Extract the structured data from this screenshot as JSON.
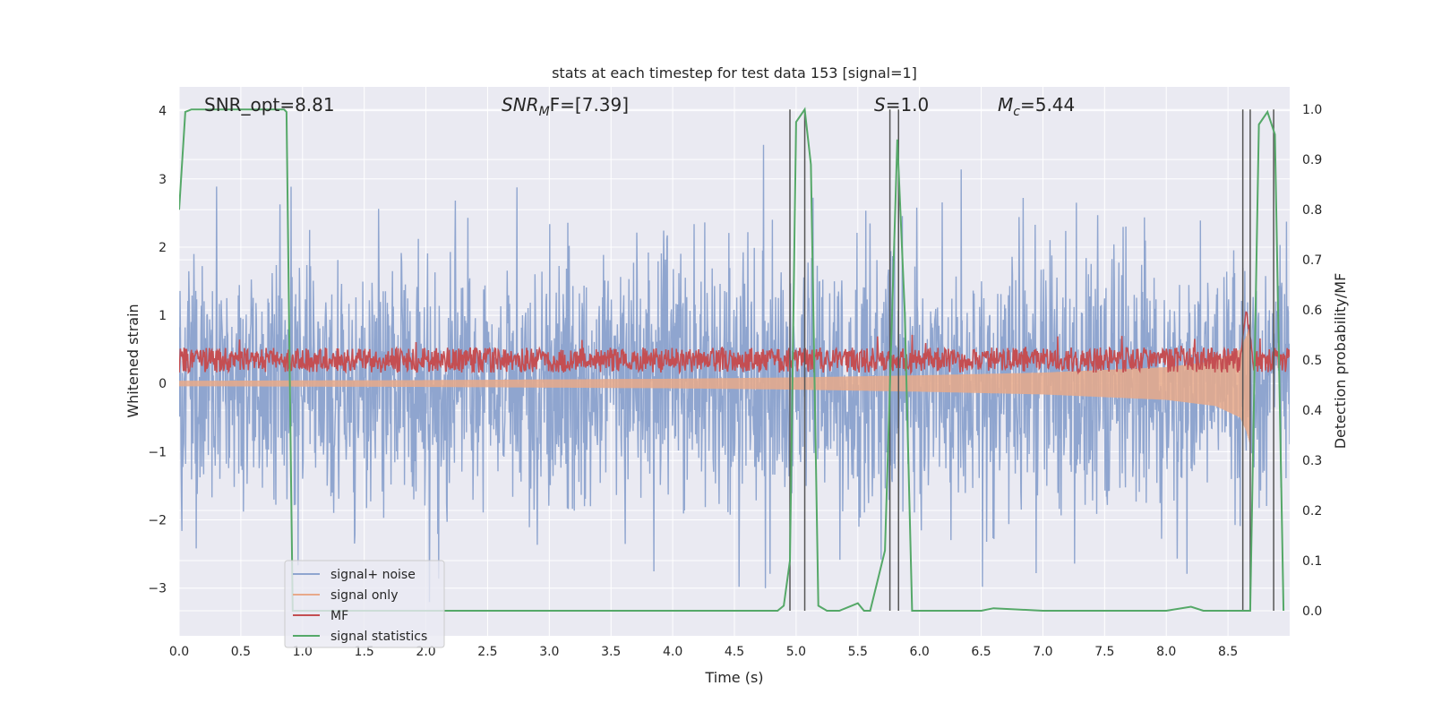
{
  "chart_data": {
    "type": "line",
    "title": "stats at each timestep for test data 153 [signal=1]",
    "xlabel": "Time (s)",
    "ylabel": "Whitened strain",
    "ylabel_right": "Detection probability/MF",
    "xlim": [
      0.0,
      9.0
    ],
    "ylim": [
      -3.7,
      4.35
    ],
    "ylim_right": [
      -0.05,
      1.045
    ],
    "grid": true,
    "legend_placement": "lower-left",
    "x_ticks": [
      "0.0",
      "0.5",
      "1.0",
      "1.5",
      "2.0",
      "2.5",
      "3.0",
      "3.5",
      "4.0",
      "4.5",
      "5.0",
      "5.5",
      "6.0",
      "6.5",
      "7.0",
      "7.5",
      "8.0",
      "8.5"
    ],
    "y_ticks_left": [
      "−3",
      "−2",
      "−1",
      "0",
      "1",
      "2",
      "3",
      "4"
    ],
    "y_ticks_right": [
      "0.0",
      "0.1",
      "0.2",
      "0.3",
      "0.4",
      "0.5",
      "0.6",
      "0.7",
      "0.8",
      "0.9",
      "1.0"
    ],
    "annotations": {
      "snr_opt": "SNR_opt=8.81",
      "snr_mf_sym": "SNR",
      "snr_mf_sub": "M",
      "snr_mf_rest": "F=[7.39]",
      "s_sym": "S",
      "s_rest": "=1.0",
      "mc_sym": "M",
      "mc_sub": "c",
      "mc_rest": "=5.44"
    },
    "series": [
      {
        "name": "signal+ noise",
        "color": "#8fa5cf",
        "axis": "left",
        "description_values": {
          "typical_positive_peak": 2.0,
          "typical_negative_trough": -2.0,
          "max": 3.5,
          "min": -3.35
        }
      },
      {
        "name": "signal only",
        "color": "#e8a98a",
        "axis": "left",
        "envelope": {
          "x": [
            0.0,
            2.0,
            4.0,
            5.0,
            6.0,
            7.0,
            8.0,
            8.4,
            8.6,
            8.65,
            8.68
          ],
          "amplitude": [
            0.04,
            0.05,
            0.07,
            0.09,
            0.12,
            0.16,
            0.24,
            0.33,
            0.5,
            0.7,
            0.9
          ]
        }
      },
      {
        "name": "MF",
        "color": "#c44e52",
        "axis": "right",
        "band": {
          "center": 0.5,
          "half_width": 0.025,
          "spike_x": 8.65,
          "spike_value": 0.6
        }
      },
      {
        "name": "signal statistics",
        "color": "#55a868",
        "axis": "right",
        "x": [
          0.0,
          0.05,
          0.1,
          0.2,
          0.85,
          0.87,
          0.92,
          0.94,
          4.85,
          4.9,
          4.95,
          5.0,
          5.07,
          5.12,
          5.18,
          5.25,
          5.35,
          5.45,
          5.5,
          5.55,
          5.6,
          5.72,
          5.82,
          5.88,
          5.94,
          6.5,
          6.6,
          7.0,
          8.0,
          8.2,
          8.3,
          8.68,
          8.75,
          8.82,
          8.88,
          8.95
        ],
        "y": [
          0.8,
          0.995,
          1.0,
          1.0,
          1.0,
          0.995,
          0.0,
          0.0,
          0.0,
          0.01,
          0.1,
          0.975,
          1.0,
          0.89,
          0.01,
          0.0,
          0.0,
          0.01,
          0.015,
          0.0,
          0.0,
          0.12,
          0.94,
          0.6,
          0.0,
          0.0,
          0.005,
          0.0,
          0.0,
          0.008,
          0.0,
          0.0,
          0.97,
          0.995,
          0.95,
          0.0
        ]
      }
    ],
    "vertical_lines_x": [
      4.95,
      5.07,
      5.76,
      5.83,
      8.62,
      8.68,
      8.87
    ],
    "legend": [
      "signal+ noise",
      "signal only",
      "MF",
      "signal statistics"
    ]
  }
}
